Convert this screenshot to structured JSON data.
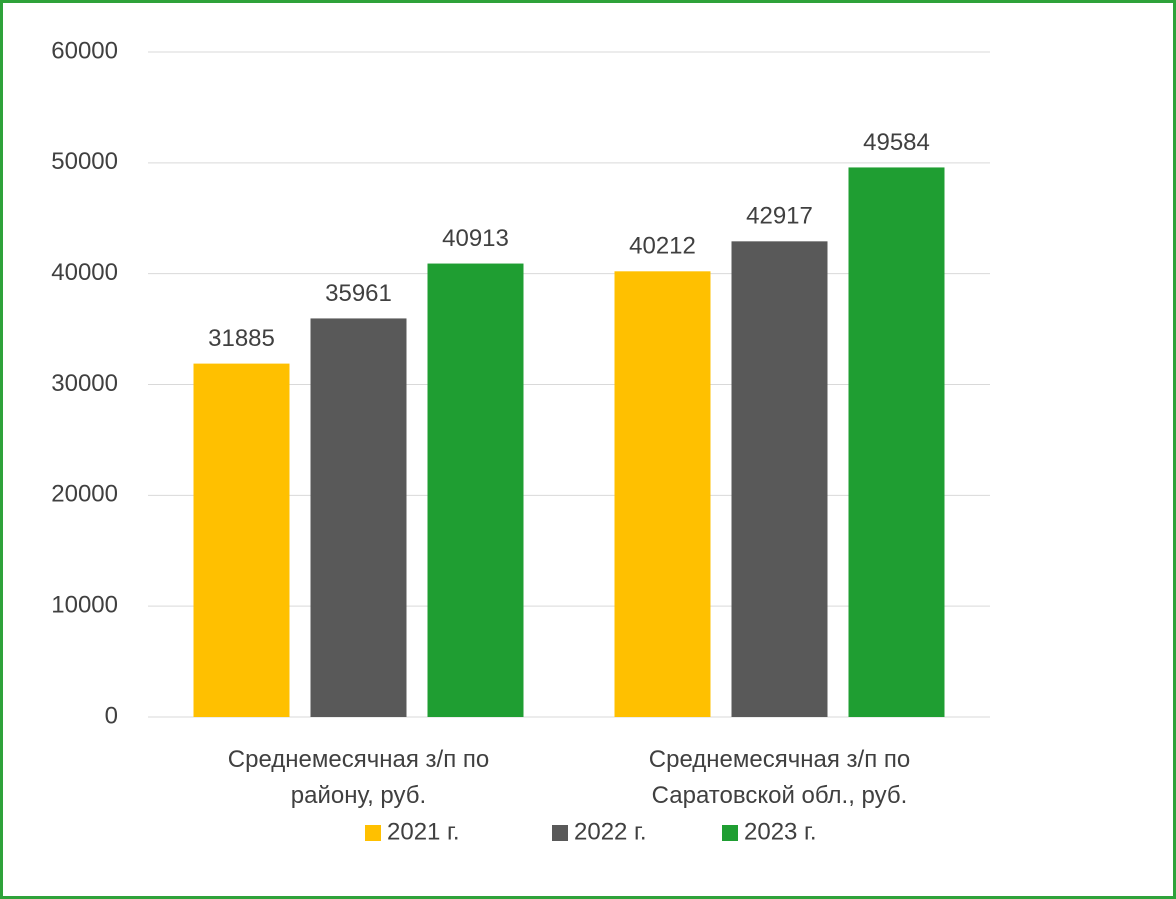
{
  "chart_data": {
    "type": "bar",
    "categories": [
      "Среднемесячная з/п по району, руб.",
      "Среднемесячная з/п по Саратовской обл., руб."
    ],
    "series": [
      {
        "name": "2021 г.",
        "color": "#ffc000",
        "values": [
          31885,
          40212
        ]
      },
      {
        "name": "2022 г.",
        "color": "#595959",
        "values": [
          35961,
          42917
        ]
      },
      {
        "name": "2023 г.",
        "color": "#1f9e32",
        "values": [
          40913,
          49584
        ]
      }
    ],
    "ylim": [
      0,
      60000
    ],
    "yticks": [
      0,
      10000,
      20000,
      30000,
      40000,
      50000,
      60000
    ],
    "grid": true,
    "legend": "bottom",
    "data_labels": true
  }
}
